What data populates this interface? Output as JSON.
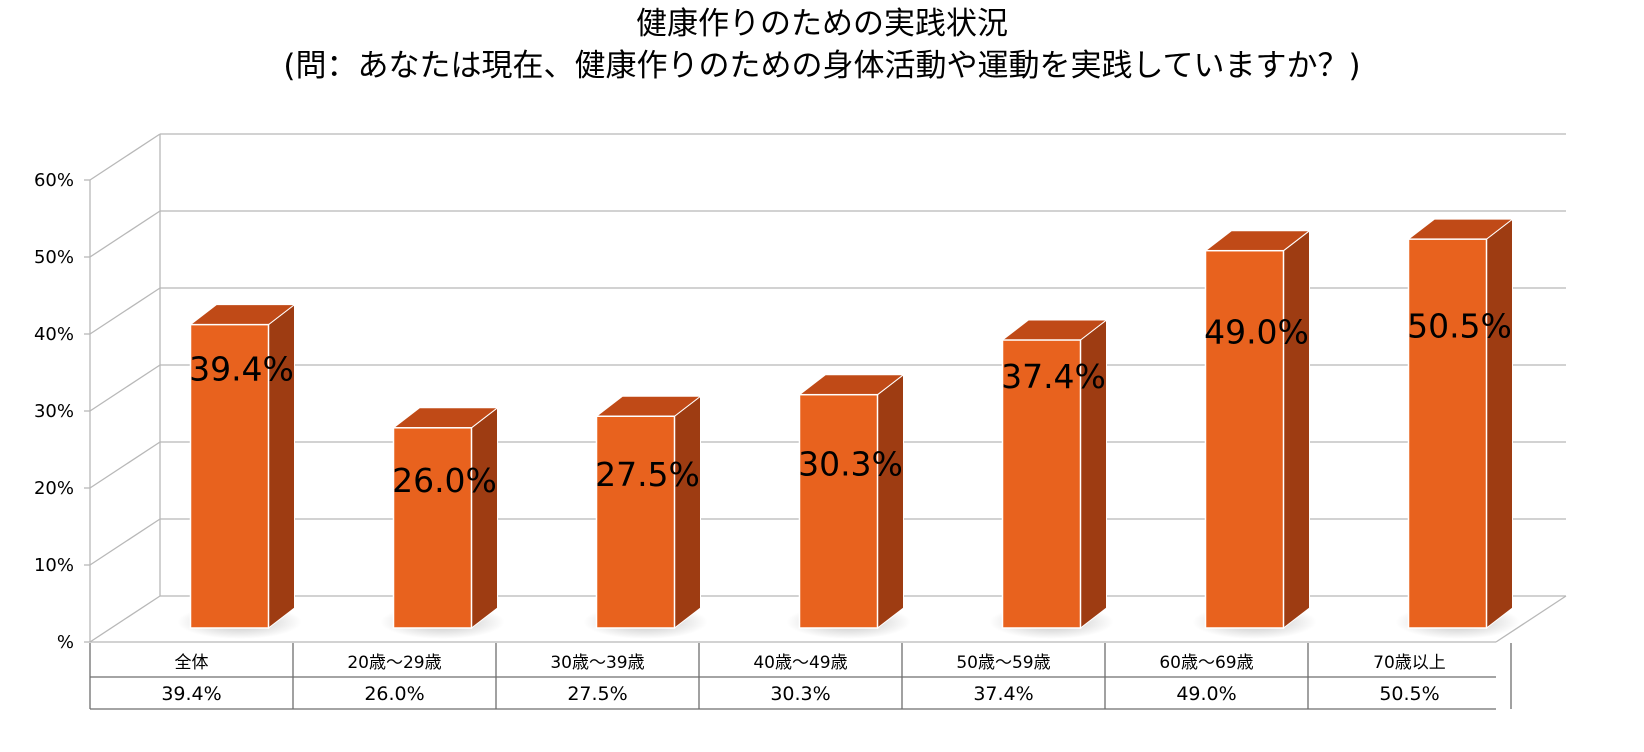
{
  "chart_data": {
    "type": "bar",
    "title": "健康作りのための実践状況",
    "subtitle": "(問：あなたは現在、健康作りのための身体活動や運動を実践していますか？)",
    "categories": [
      "全体",
      "20歳～29歳",
      "30歳～39歳",
      "40歳～49歳",
      "50歳～59歳",
      "60歳～69歳",
      "70歳以上"
    ],
    "values": [
      39.4,
      26.0,
      27.5,
      30.3,
      37.4,
      49.0,
      50.5
    ],
    "data_labels": [
      "39.4%",
      "26.0%",
      "27.5%",
      "30.3%",
      "37.4%",
      "49.0%",
      "50.5%"
    ],
    "table_values": [
      "39.4%",
      "26.0%",
      "27.5%",
      "30.3%",
      "37.4%",
      "49.0%",
      "50.5%"
    ],
    "y_ticks": [
      "%",
      "10%",
      "20%",
      "30%",
      "40%",
      "50%",
      "60%"
    ],
    "ylim": [
      0,
      60
    ],
    "grid": true,
    "legend": "none",
    "style": "3d-column-with-data-table",
    "colors": {
      "bar_front": "#E8621E",
      "bar_side": "#9E3C12",
      "bar_top": "#C04A17",
      "grid": "#b8b8b8",
      "table_border": "#6e6e6e"
    }
  }
}
